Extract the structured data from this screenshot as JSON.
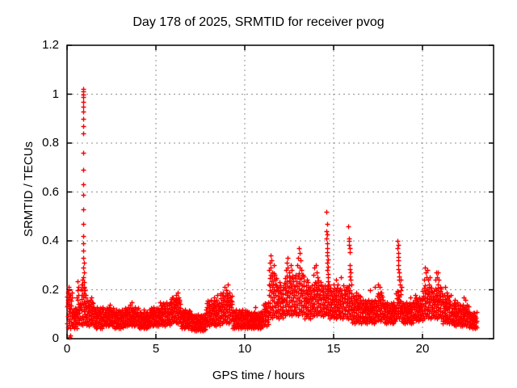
{
  "page": {
    "background": "#ffffff"
  },
  "chart_data": {
    "type": "scatter",
    "title": "Day 178 of 2025, SRMTID for receiver pvog",
    "xlabel": "GPS time / hours",
    "ylabel": "SRMTID / TECUs",
    "xlim": [
      0,
      24
    ],
    "ylim": [
      0,
      1.2
    ],
    "xticks": [
      0,
      5,
      10,
      15,
      20
    ],
    "xtick_labels": [
      "0",
      "5",
      "10",
      "15",
      "20"
    ],
    "yticks": [
      0,
      0.2,
      0.4,
      0.6,
      0.8,
      1,
      1.2
    ],
    "ytick_labels": [
      "0",
      "0.2",
      "0.4",
      "0.6",
      "0.8",
      "1",
      "1.2"
    ],
    "grid": true,
    "grid_color": "#909090",
    "border_color": "#000000",
    "background_color": "#ffffff",
    "marker": {
      "shape": "plus",
      "color": "#ff0000",
      "size": 7
    },
    "legend": "none",
    "series": [
      {
        "name": "SRMTID",
        "band_points_per_hour": 30,
        "band_layers": 3,
        "jitter": [
          0.62,
          0.15,
          0.88,
          0.34,
          0.72,
          0.05,
          0.49,
          0.95,
          0.22,
          0.58,
          0.81,
          0.1,
          0.41,
          0.69,
          0.27,
          0.92,
          0.03,
          0.55,
          0.77,
          0.18,
          0.64,
          0.38,
          0.98,
          0.08,
          0.46,
          0.85,
          0.3,
          0.6,
          0.13,
          0.74,
          0.52,
          0.25
        ],
        "band_envelope": [
          [
            0.0,
            0.3,
            0.04,
            0.19
          ],
          [
            0.3,
            0.55,
            0.04,
            0.13
          ],
          [
            0.55,
            0.75,
            0.05,
            0.16
          ],
          [
            0.75,
            1.05,
            0.05,
            0.21
          ],
          [
            1.05,
            1.5,
            0.05,
            0.16
          ],
          [
            1.5,
            2.0,
            0.04,
            0.13
          ],
          [
            2.0,
            2.6,
            0.05,
            0.13
          ],
          [
            2.6,
            3.2,
            0.04,
            0.12
          ],
          [
            3.2,
            4.0,
            0.05,
            0.13
          ],
          [
            4.0,
            4.6,
            0.04,
            0.11
          ],
          [
            4.6,
            5.2,
            0.05,
            0.13
          ],
          [
            5.2,
            5.8,
            0.05,
            0.15
          ],
          [
            5.8,
            6.4,
            0.06,
            0.17
          ],
          [
            6.4,
            7.0,
            0.04,
            0.12
          ],
          [
            7.0,
            7.8,
            0.03,
            0.1
          ],
          [
            7.8,
            8.6,
            0.05,
            0.16
          ],
          [
            8.6,
            9.3,
            0.06,
            0.19
          ],
          [
            9.3,
            10.2,
            0.04,
            0.12
          ],
          [
            10.2,
            11.0,
            0.04,
            0.11
          ],
          [
            11.0,
            11.35,
            0.05,
            0.15
          ],
          [
            11.35,
            11.8,
            0.08,
            0.27
          ],
          [
            11.8,
            12.2,
            0.08,
            0.22
          ],
          [
            12.2,
            12.8,
            0.09,
            0.26
          ],
          [
            12.8,
            13.35,
            0.09,
            0.27
          ],
          [
            13.35,
            13.85,
            0.08,
            0.22
          ],
          [
            13.85,
            14.3,
            0.09,
            0.24
          ],
          [
            14.3,
            14.75,
            0.09,
            0.22
          ],
          [
            14.75,
            15.5,
            0.08,
            0.21
          ],
          [
            15.5,
            16.0,
            0.08,
            0.22
          ],
          [
            16.0,
            16.6,
            0.06,
            0.18
          ],
          [
            16.6,
            17.4,
            0.06,
            0.16
          ],
          [
            17.4,
            17.8,
            0.07,
            0.19
          ],
          [
            17.8,
            18.5,
            0.06,
            0.15
          ],
          [
            18.5,
            18.8,
            0.08,
            0.2
          ],
          [
            18.8,
            19.5,
            0.06,
            0.15
          ],
          [
            19.5,
            20.0,
            0.07,
            0.17
          ],
          [
            20.0,
            20.5,
            0.08,
            0.22
          ],
          [
            20.5,
            21.1,
            0.08,
            0.21
          ],
          [
            21.1,
            21.6,
            0.06,
            0.18
          ],
          [
            21.6,
            22.1,
            0.05,
            0.15
          ],
          [
            22.1,
            22.6,
            0.05,
            0.14
          ],
          [
            22.6,
            23.05,
            0.04,
            0.11
          ]
        ],
        "points": [
          [
            0.03,
            0.16
          ],
          [
            0.05,
            0.14
          ],
          [
            0.06,
            0.19
          ],
          [
            0.08,
            0.2
          ],
          [
            0.1,
            0.21
          ],
          [
            0.12,
            0.17
          ],
          [
            0.15,
            0.005
          ],
          [
            0.18,
            0.012
          ],
          [
            0.55,
            0.17
          ],
          [
            0.58,
            0.2
          ],
          [
            0.6,
            0.235
          ],
          [
            0.62,
            0.21
          ],
          [
            0.63,
            0.18
          ],
          [
            0.89,
            1.02
          ],
          [
            0.91,
            1.02
          ],
          [
            0.9,
            1.01
          ],
          [
            0.92,
            1.0
          ],
          [
            0.9,
            0.99
          ],
          [
            0.91,
            0.97
          ],
          [
            0.9,
            0.95
          ],
          [
            0.92,
            0.93
          ],
          [
            0.91,
            0.9
          ],
          [
            0.9,
            0.87
          ],
          [
            0.91,
            0.84
          ],
          [
            0.92,
            0.76
          ],
          [
            0.91,
            0.69
          ],
          [
            0.9,
            0.63
          ],
          [
            0.92,
            0.59
          ],
          [
            0.91,
            0.53
          ],
          [
            0.92,
            0.47
          ],
          [
            0.93,
            0.42
          ],
          [
            0.92,
            0.39
          ],
          [
            0.93,
            0.36
          ],
          [
            0.92,
            0.33
          ],
          [
            0.94,
            0.31
          ],
          [
            0.93,
            0.29
          ],
          [
            0.94,
            0.27
          ],
          [
            0.93,
            0.25
          ],
          [
            0.95,
            0.23
          ],
          [
            0.96,
            0.21
          ],
          [
            0.84,
            0.22
          ],
          [
            0.86,
            0.24
          ],
          [
            0.87,
            0.22
          ],
          [
            1.0,
            0.2
          ],
          [
            1.03,
            0.18
          ],
          [
            1.32,
            0.16
          ],
          [
            1.36,
            0.17
          ],
          [
            1.4,
            0.15
          ],
          [
            2.42,
            0.14
          ],
          [
            3.55,
            0.14
          ],
          [
            3.62,
            0.15
          ],
          [
            4.3,
            0.12
          ],
          [
            5.92,
            0.17
          ],
          [
            6.05,
            0.16
          ],
          [
            6.15,
            0.18
          ],
          [
            6.22,
            0.19
          ],
          [
            6.3,
            0.16
          ],
          [
            8.25,
            0.17
          ],
          [
            8.45,
            0.18
          ],
          [
            8.78,
            0.19
          ],
          [
            8.88,
            0.21
          ],
          [
            8.95,
            0.2
          ],
          [
            9.05,
            0.22
          ],
          [
            9.12,
            0.19
          ],
          [
            9.18,
            0.17
          ],
          [
            10.6,
            0.13
          ],
          [
            11.38,
            0.28
          ],
          [
            11.42,
            0.31
          ],
          [
            11.47,
            0.34
          ],
          [
            11.45,
            0.29
          ],
          [
            11.52,
            0.32
          ],
          [
            11.55,
            0.27
          ],
          [
            11.62,
            0.3
          ],
          [
            11.68,
            0.26
          ],
          [
            11.73,
            0.24
          ],
          [
            11.95,
            0.23
          ],
          [
            12.02,
            0.21
          ],
          [
            12.32,
            0.28
          ],
          [
            12.38,
            0.31
          ],
          [
            12.42,
            0.33
          ],
          [
            12.4,
            0.29
          ],
          [
            12.48,
            0.27
          ],
          [
            12.55,
            0.25
          ],
          [
            12.6,
            0.3
          ],
          [
            12.65,
            0.28
          ],
          [
            12.7,
            0.25
          ],
          [
            12.97,
            0.3
          ],
          [
            13.02,
            0.33
          ],
          [
            13.06,
            0.37
          ],
          [
            13.08,
            0.35
          ],
          [
            13.12,
            0.32
          ],
          [
            13.1,
            0.29
          ],
          [
            13.18,
            0.28
          ],
          [
            13.24,
            0.26
          ],
          [
            13.48,
            0.24
          ],
          [
            13.55,
            0.23
          ],
          [
            13.88,
            0.26
          ],
          [
            13.93,
            0.29
          ],
          [
            13.98,
            0.3
          ],
          [
            14.03,
            0.27
          ],
          [
            14.08,
            0.25
          ],
          [
            14.28,
            0.23
          ],
          [
            14.6,
            0.52
          ],
          [
            14.62,
            0.47
          ],
          [
            14.6,
            0.44
          ],
          [
            14.63,
            0.425
          ],
          [
            14.61,
            0.41
          ],
          [
            14.64,
            0.39
          ],
          [
            14.62,
            0.37
          ],
          [
            14.65,
            0.355
          ],
          [
            14.63,
            0.34
          ],
          [
            14.66,
            0.325
          ],
          [
            14.64,
            0.31
          ],
          [
            14.67,
            0.295
          ],
          [
            14.65,
            0.28
          ],
          [
            14.68,
            0.265
          ],
          [
            14.66,
            0.25
          ],
          [
            14.69,
            0.235
          ],
          [
            14.72,
            0.22
          ],
          [
            15.02,
            0.22
          ],
          [
            15.12,
            0.24
          ],
          [
            15.22,
            0.22
          ],
          [
            15.32,
            0.2
          ],
          [
            15.4,
            0.25
          ],
          [
            15.84,
            0.46
          ],
          [
            15.86,
            0.41
          ],
          [
            15.88,
            0.4
          ],
          [
            15.87,
            0.385
          ],
          [
            15.9,
            0.37
          ],
          [
            15.89,
            0.355
          ],
          [
            15.92,
            0.3
          ],
          [
            15.91,
            0.285
          ],
          [
            15.94,
            0.27
          ],
          [
            15.93,
            0.255
          ],
          [
            15.96,
            0.24
          ],
          [
            15.98,
            0.22
          ],
          [
            16.28,
            0.19
          ],
          [
            16.35,
            0.18
          ],
          [
            17.05,
            0.2
          ],
          [
            17.3,
            0.21
          ],
          [
            17.52,
            0.22
          ],
          [
            17.58,
            0.21
          ],
          [
            17.64,
            0.19
          ],
          [
            17.7,
            0.18
          ],
          [
            18.6,
            0.4
          ],
          [
            18.62,
            0.385
          ],
          [
            18.61,
            0.37
          ],
          [
            18.63,
            0.35
          ],
          [
            18.62,
            0.335
          ],
          [
            18.64,
            0.32
          ],
          [
            18.63,
            0.3
          ],
          [
            18.65,
            0.285
          ],
          [
            18.66,
            0.27
          ],
          [
            18.68,
            0.255
          ],
          [
            18.7,
            0.24
          ],
          [
            18.73,
            0.22
          ],
          [
            18.78,
            0.24
          ],
          [
            18.8,
            0.21
          ],
          [
            19.3,
            0.17
          ],
          [
            19.58,
            0.18
          ],
          [
            19.64,
            0.17
          ],
          [
            20.1,
            0.24
          ],
          [
            20.15,
            0.29
          ],
          [
            20.18,
            0.27
          ],
          [
            20.22,
            0.25
          ],
          [
            20.28,
            0.28
          ],
          [
            20.33,
            0.24
          ],
          [
            20.38,
            0.22
          ],
          [
            20.43,
            0.25
          ],
          [
            20.72,
            0.24
          ],
          [
            20.78,
            0.27
          ],
          [
            20.83,
            0.25
          ],
          [
            20.88,
            0.27
          ],
          [
            20.85,
            0.22
          ],
          [
            20.93,
            0.24
          ],
          [
            20.98,
            0.21
          ],
          [
            21.28,
            0.21
          ],
          [
            21.35,
            0.19
          ],
          [
            21.8,
            0.16
          ],
          [
            22.32,
            0.17
          ],
          [
            22.4,
            0.16
          ],
          [
            22.48,
            0.14
          ]
        ]
      }
    ]
  }
}
